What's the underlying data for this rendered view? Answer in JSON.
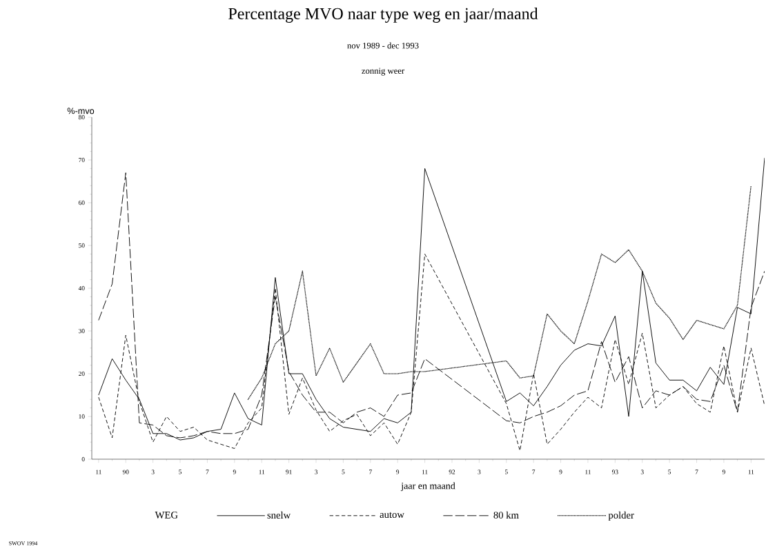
{
  "chart_data": {
    "type": "line",
    "title": "Percentage MVO naar type weg en jaar/maand",
    "subtitle": "nov 1989 - dec 1993",
    "annotations": [
      "zonnig weer",
      "SWOV 1994"
    ],
    "xlabel": "jaar en maand",
    "ylabel": "%-mvo",
    "legend_title": "WEG",
    "legend": "bottom",
    "x": [
      "1989-11",
      "1989-12",
      "1990-01",
      "1990-02",
      "1990-03",
      "1990-04",
      "1990-05",
      "1990-06",
      "1990-07",
      "1990-08",
      "1990-09",
      "1990-10",
      "1990-11",
      "1990-12",
      "1991-01",
      "1991-02",
      "1991-03",
      "1991-04",
      "1991-05",
      "1991-06",
      "1991-07",
      "1991-08",
      "1991-09",
      "1991-10",
      "1991-11",
      "1992-05",
      "1992-06",
      "1992-07",
      "1992-08",
      "1992-09",
      "1992-10",
      "1992-11",
      "1992-12",
      "1993-01",
      "1993-02",
      "1993-03",
      "1993-04",
      "1993-05",
      "1993-06",
      "1993-07",
      "1993-08",
      "1993-09",
      "1993-10",
      "1993-11",
      "1993-12"
    ],
    "xlim": [
      "1989-10-16",
      "1993-12"
    ],
    "ylim": [
      0,
      80
    ],
    "xticks": [
      {
        "value": "1989-11",
        "label": "11"
      },
      {
        "value": "1990-01",
        "label": "90"
      },
      {
        "value": "1990-03",
        "label": "3"
      },
      {
        "value": "1990-05",
        "label": "5"
      },
      {
        "value": "1990-07",
        "label": "7"
      },
      {
        "value": "1990-09",
        "label": "9"
      },
      {
        "value": "1990-11",
        "label": "11"
      },
      {
        "value": "1991-01",
        "label": "91"
      },
      {
        "value": "1991-03",
        "label": "3"
      },
      {
        "value": "1991-05",
        "label": "5"
      },
      {
        "value": "1991-07",
        "label": "7"
      },
      {
        "value": "1991-09",
        "label": "9"
      },
      {
        "value": "1991-11",
        "label": "11"
      },
      {
        "value": "1992-01",
        "label": "92"
      },
      {
        "value": "1992-03",
        "label": "3"
      },
      {
        "value": "1992-05",
        "label": "5"
      },
      {
        "value": "1992-07",
        "label": "7"
      },
      {
        "value": "1992-09",
        "label": "9"
      },
      {
        "value": "1992-11",
        "label": "11"
      },
      {
        "value": "1993-01",
        "label": "93"
      },
      {
        "value": "1993-03",
        "label": "3"
      },
      {
        "value": "1993-05",
        "label": "5"
      },
      {
        "value": "1993-07",
        "label": "7"
      },
      {
        "value": "1993-09",
        "label": "9"
      },
      {
        "value": "1993-11",
        "label": "11"
      }
    ],
    "yticks": [
      0,
      10,
      20,
      30,
      40,
      50,
      60,
      70,
      80
    ],
    "series": [
      {
        "name": "snelw",
        "color": "#000000",
        "line_style": "solid",
        "values": [
          15,
          23.5,
          18.5,
          14,
          6,
          6,
          4.5,
          5,
          6.5,
          7,
          15.5,
          9.5,
          8,
          42.5,
          20,
          20,
          14,
          9.5,
          7.5,
          7,
          6.5,
          9.5,
          8.5,
          11,
          68,
          13.5,
          15.5,
          12.5,
          17,
          22,
          25.5,
          27,
          26.5,
          33.5,
          10,
          44,
          22.5,
          18.5,
          18.5,
          16,
          21.5,
          17.5,
          35.5,
          34,
          70.5
        ]
      },
      {
        "name": "autow",
        "color": "#000000",
        "line_style": "dashed",
        "values": [
          14.5,
          5,
          29,
          13.5,
          4,
          10,
          6.5,
          7.5,
          4.5,
          3.5,
          2.5,
          8.5,
          12,
          40,
          10.5,
          19,
          11.5,
          6.5,
          9,
          10.5,
          5.5,
          8.5,
          3.5,
          11,
          48,
          13,
          2,
          20,
          3.5,
          7,
          11,
          14.5,
          12,
          28,
          17.5,
          29.5,
          12,
          15,
          17,
          13,
          11,
          26.5,
          11,
          26,
          12.5
        ]
      },
      {
        "name": "80 km",
        "color": "#000000",
        "line_style": "long dashed",
        "values": [
          32.5,
          41,
          67,
          8.5,
          8,
          5.5,
          5,
          5.5,
          6.5,
          6,
          6,
          7,
          15,
          38,
          20.5,
          15,
          11,
          11,
          8.5,
          11,
          12,
          10,
          15,
          15.5,
          23.5,
          9,
          8.5,
          10,
          11,
          12.5,
          15,
          16,
          27.5,
          18,
          24,
          12,
          16,
          15,
          17,
          14,
          13.5,
          22,
          11,
          35.5,
          44
        ]
      },
      {
        "name": "polder",
        "color": "#000000",
        "line_style": "dotted",
        "values": [
          null,
          null,
          null,
          null,
          null,
          null,
          null,
          null,
          null,
          null,
          null,
          14,
          19,
          27,
          30,
          44,
          19.5,
          26,
          18,
          22.5,
          27,
          20,
          20,
          20.5,
          20.5,
          23,
          19,
          19.5,
          34,
          30,
          27,
          37,
          48,
          46,
          49,
          44,
          36.5,
          33,
          28,
          32.5,
          31.5,
          30.5,
          36,
          64,
          null
        ]
      }
    ]
  }
}
